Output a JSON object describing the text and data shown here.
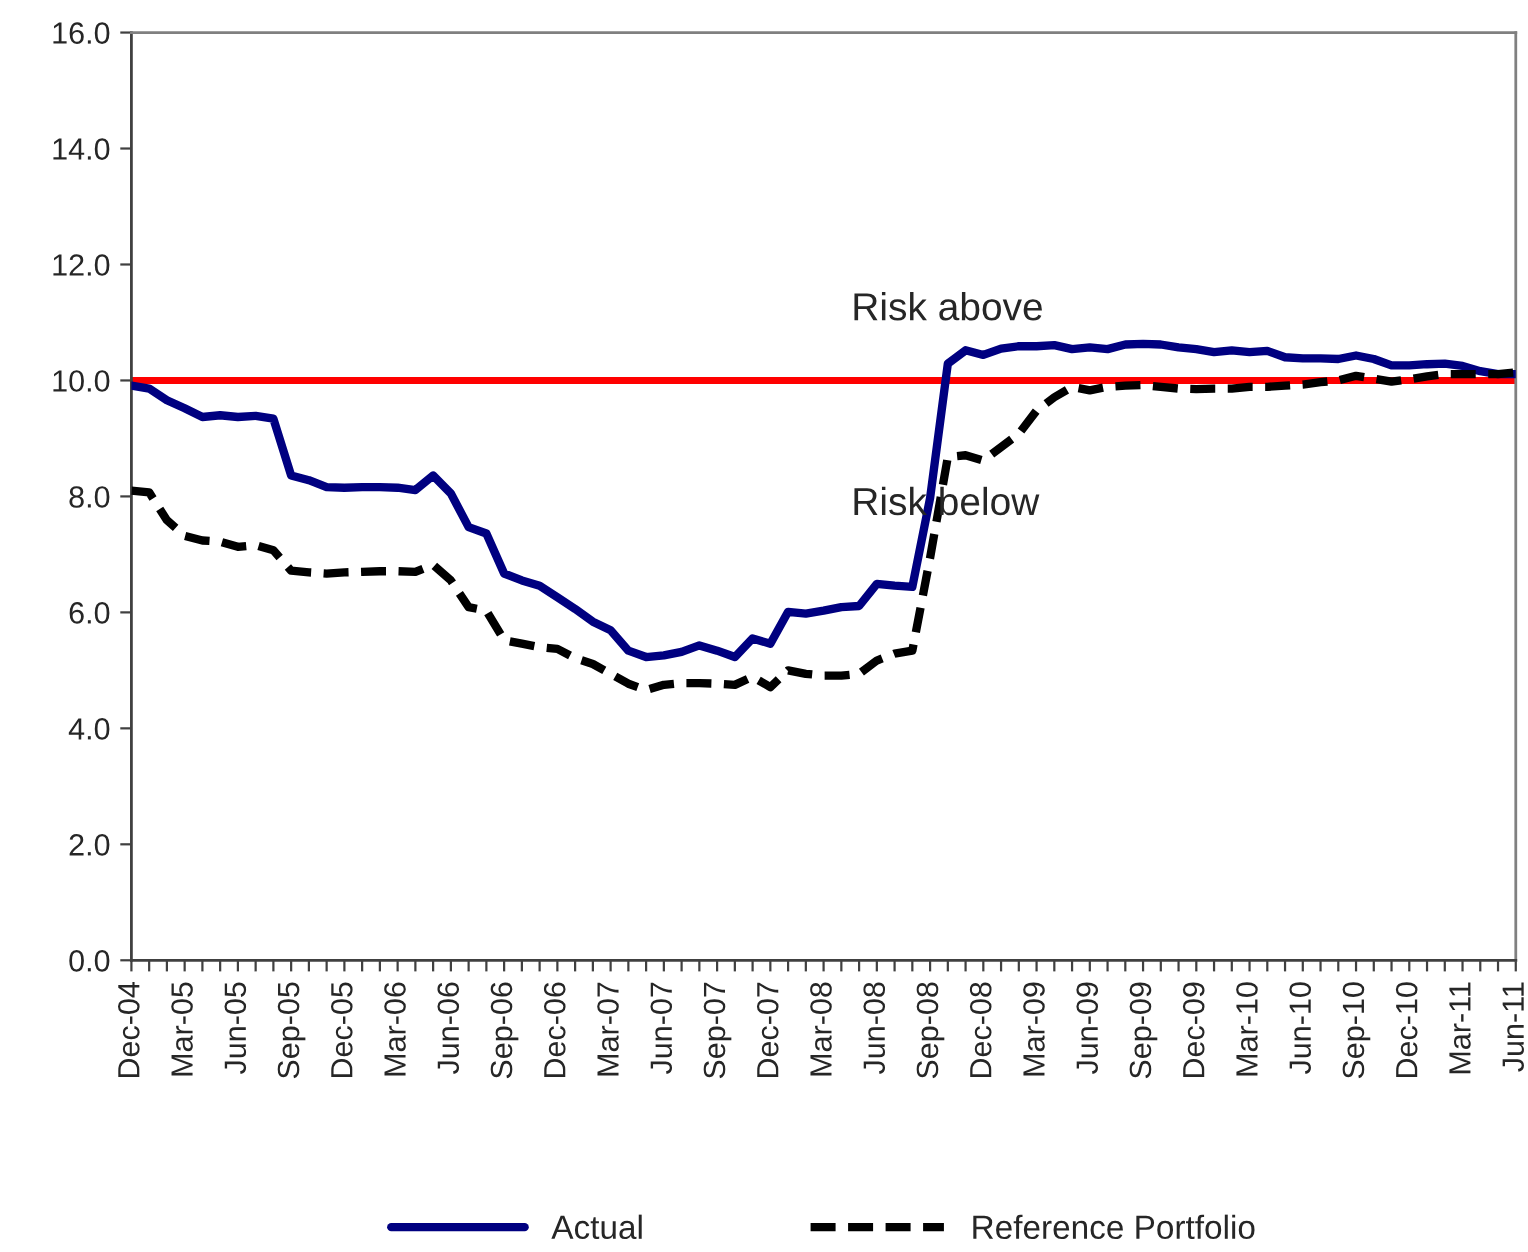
{
  "chart_data": {
    "type": "line",
    "categories": [
      "Dec-04",
      null,
      null,
      "Mar-05",
      null,
      null,
      "Jun-05",
      null,
      null,
      "Sep-05",
      null,
      null,
      "Dec-05",
      null,
      null,
      "Mar-06",
      null,
      null,
      "Jun-06",
      null,
      null,
      "Sep-06",
      null,
      null,
      "Dec-06",
      null,
      null,
      "Mar-07",
      null,
      null,
      "Jun-07",
      null,
      null,
      "Sep-07",
      null,
      null,
      "Dec-07",
      null,
      null,
      "Mar-08",
      null,
      null,
      "Jun-08",
      null,
      null,
      "Sep-08",
      null,
      null,
      "Dec-08",
      null,
      null,
      "Mar-09",
      null,
      null,
      "Jun-09",
      null,
      null,
      "Sep-09",
      null,
      null,
      "Dec-09",
      null,
      null,
      "Mar-10",
      null,
      null,
      "Jun-10",
      null,
      null,
      "Sep-10",
      null,
      null,
      "Dec-10",
      null,
      null,
      "Mar-11",
      null,
      null,
      "Jun-11"
    ],
    "series": [
      {
        "name": "Actual",
        "color": "#000080",
        "line_style": "solid",
        "values": [
          9.91,
          9.86,
          9.66,
          9.52,
          9.37,
          9.4,
          9.37,
          9.39,
          9.34,
          8.36,
          8.28,
          8.16,
          8.15,
          8.16,
          8.16,
          8.15,
          8.11,
          8.36,
          8.05,
          7.47,
          7.36,
          6.67,
          6.55,
          6.46,
          6.26,
          6.06,
          5.84,
          5.69,
          5.34,
          5.23,
          5.26,
          5.32,
          5.43,
          5.34,
          5.23,
          5.55,
          5.46,
          6.01,
          5.98,
          6.03,
          6.09,
          6.11,
          6.49,
          6.46,
          6.44,
          7.97,
          10.29,
          10.52,
          10.44,
          10.55,
          10.59,
          10.59,
          10.61,
          10.54,
          10.57,
          10.54,
          10.62,
          10.63,
          10.62,
          10.57,
          10.54,
          10.49,
          10.52,
          10.49,
          10.51,
          10.4,
          10.38,
          10.38,
          10.37,
          10.43,
          10.37,
          10.26,
          10.26,
          10.28,
          10.29,
          10.25,
          10.16,
          10.11,
          10.11
        ]
      },
      {
        "name": "Reference Portfolio",
        "color": "#000000",
        "line_style": "dashed",
        "values": [
          8.1,
          8.07,
          7.59,
          7.32,
          7.24,
          7.22,
          7.13,
          7.16,
          7.07,
          6.72,
          6.69,
          6.67,
          6.69,
          6.7,
          6.71,
          6.71,
          6.7,
          6.82,
          6.55,
          6.09,
          6.03,
          5.52,
          5.46,
          5.4,
          5.37,
          5.21,
          5.11,
          4.94,
          4.77,
          4.66,
          4.75,
          4.78,
          4.78,
          4.77,
          4.75,
          4.89,
          4.71,
          5.0,
          4.94,
          4.91,
          4.91,
          4.94,
          5.17,
          5.29,
          5.34,
          6.94,
          8.68,
          8.71,
          8.62,
          8.85,
          9.08,
          9.48,
          9.71,
          9.89,
          9.83,
          9.89,
          9.91,
          9.92,
          9.89,
          9.86,
          9.85,
          9.86,
          9.86,
          9.89,
          9.89,
          9.91,
          9.93,
          9.97,
          10.0,
          10.08,
          10.03,
          9.98,
          10.02,
          10.07,
          10.11,
          10.11,
          10.11,
          10.11,
          10.14
        ]
      }
    ],
    "ylim": [
      0,
      16
    ],
    "yticks": [
      {
        "value": 0,
        "label": "0.0"
      },
      {
        "value": 2,
        "label": "2.0"
      },
      {
        "value": 4,
        "label": "4.0"
      },
      {
        "value": 6,
        "label": "6.0"
      },
      {
        "value": 8,
        "label": "8.0"
      },
      {
        "value": 10,
        "label": "10.0"
      },
      {
        "value": 12,
        "label": "12.0"
      },
      {
        "value": 14,
        "label": "14.0"
      },
      {
        "value": 16,
        "label": "16.0"
      }
    ],
    "ref_lines": [
      {
        "axis": "y",
        "value": 10,
        "color": "#ff0000",
        "line_style": "solid"
      }
    ],
    "annotations": [
      "Risk above",
      "Risk below"
    ],
    "legend": "bottom",
    "grid": false,
    "marker": "none"
  }
}
